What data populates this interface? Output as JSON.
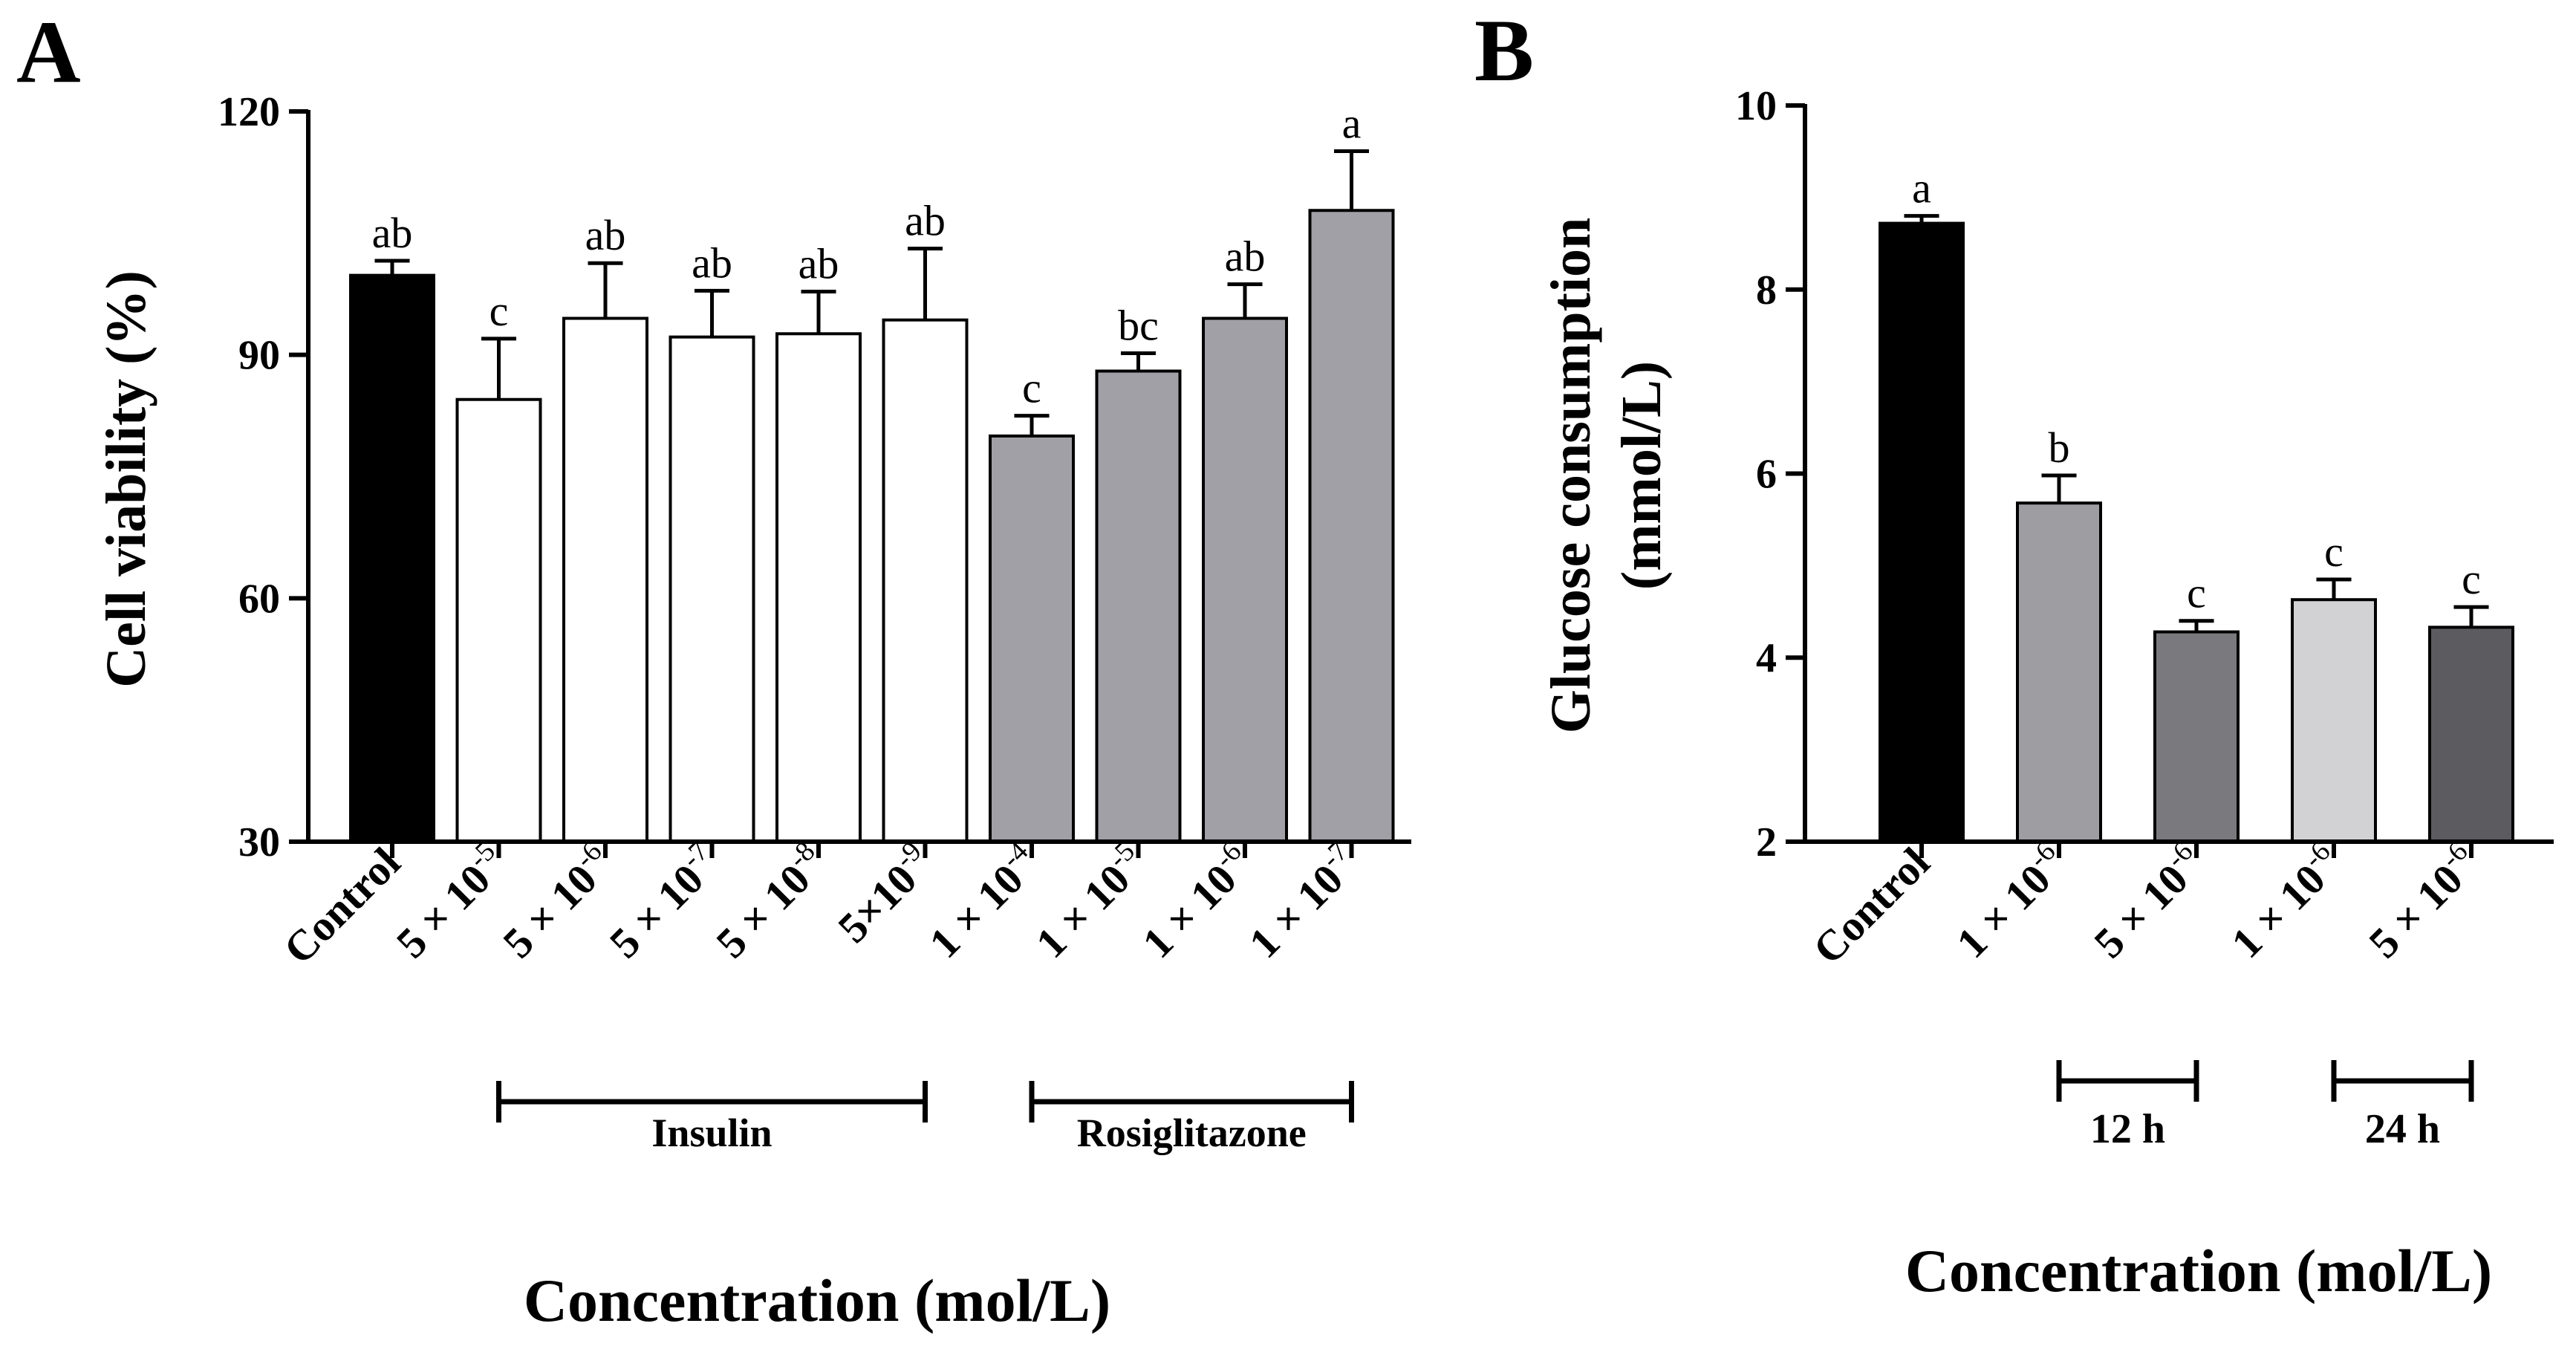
{
  "chart_data": [
    {
      "panel": "A",
      "type": "bar",
      "title": "",
      "ylabel": "Cell viability (%)",
      "xlabel": "Concentration (mol/L)",
      "ylim": [
        30,
        120
      ],
      "yticks": [
        "30",
        "60",
        "90",
        "120"
      ],
      "ytick_values": [
        30,
        60,
        90,
        120
      ],
      "categories": [
        {
          "base": "Control",
          "exp": ""
        },
        {
          "base": "5 × 10",
          "exp": "-5"
        },
        {
          "base": "5 × 10",
          "exp": "-6"
        },
        {
          "base": "5 × 10",
          "exp": "-7"
        },
        {
          "base": "5 × 10",
          "exp": "-8"
        },
        {
          "base": "5×10",
          "exp": "-9"
        },
        {
          "base": "1 × 10",
          "exp": "-4"
        },
        {
          "base": "1 × 10",
          "exp": "-5"
        },
        {
          "base": "1 × 10",
          "exp": "-6"
        },
        {
          "base": "1 × 10",
          "exp": "-7"
        }
      ],
      "values": [
        99.8,
        84.5,
        94.5,
        92.2,
        92.6,
        94.3,
        80.0,
        88.0,
        94.5,
        107.8
      ],
      "errors": [
        1.8,
        7.5,
        6.8,
        5.7,
        5.2,
        8.8,
        2.5,
        2.2,
        4.2,
        7.3
      ],
      "letters": [
        "ab",
        "c",
        "ab",
        "ab",
        "ab",
        "ab",
        "c",
        "bc",
        "ab",
        "a"
      ],
      "fills": [
        "#000000",
        "#ffffff",
        "#ffffff",
        "#ffffff",
        "#ffffff",
        "#ffffff",
        "#a0a0a6",
        "#a0a0a6",
        "#a0a0a6",
        "#a0a0a6"
      ],
      "groups": [
        {
          "label": "Insulin",
          "from": 1,
          "to": 5
        },
        {
          "label": "Rosiglitazone",
          "from": 6,
          "to": 9
        }
      ]
    },
    {
      "panel": "B",
      "type": "bar",
      "title": "",
      "ylabel": [
        "Glucose consumption",
        "(mmol/L)"
      ],
      "xlabel": "Concentration (mol/L)",
      "ylim": [
        2,
        10
      ],
      "yticks": [
        "2",
        "4",
        "6",
        "8",
        "10"
      ],
      "ytick_values": [
        2,
        4,
        6,
        8,
        10
      ],
      "categories": [
        {
          "base": "Control",
          "exp": ""
        },
        {
          "base": "1 × 10",
          "exp": "-6"
        },
        {
          "base": "5 × 10",
          "exp": "-6"
        },
        {
          "base": "1 × 10",
          "exp": "-6"
        },
        {
          "base": "5 × 10",
          "exp": "-6"
        }
      ],
      "values": [
        8.72,
        5.68,
        4.28,
        4.63,
        4.33
      ],
      "errors": [
        0.08,
        0.3,
        0.12,
        0.22,
        0.22
      ],
      "letters": [
        "a",
        "b",
        "c",
        "c",
        "c"
      ],
      "fills": [
        "#000000",
        "#9d9da2",
        "#7a7a7e",
        "#d2d2d4",
        "#5c5c60"
      ],
      "groups": [
        {
          "label": "12 h",
          "from": 1,
          "to": 2
        },
        {
          "label": "24 h",
          "from": 3,
          "to": 4
        }
      ]
    }
  ]
}
